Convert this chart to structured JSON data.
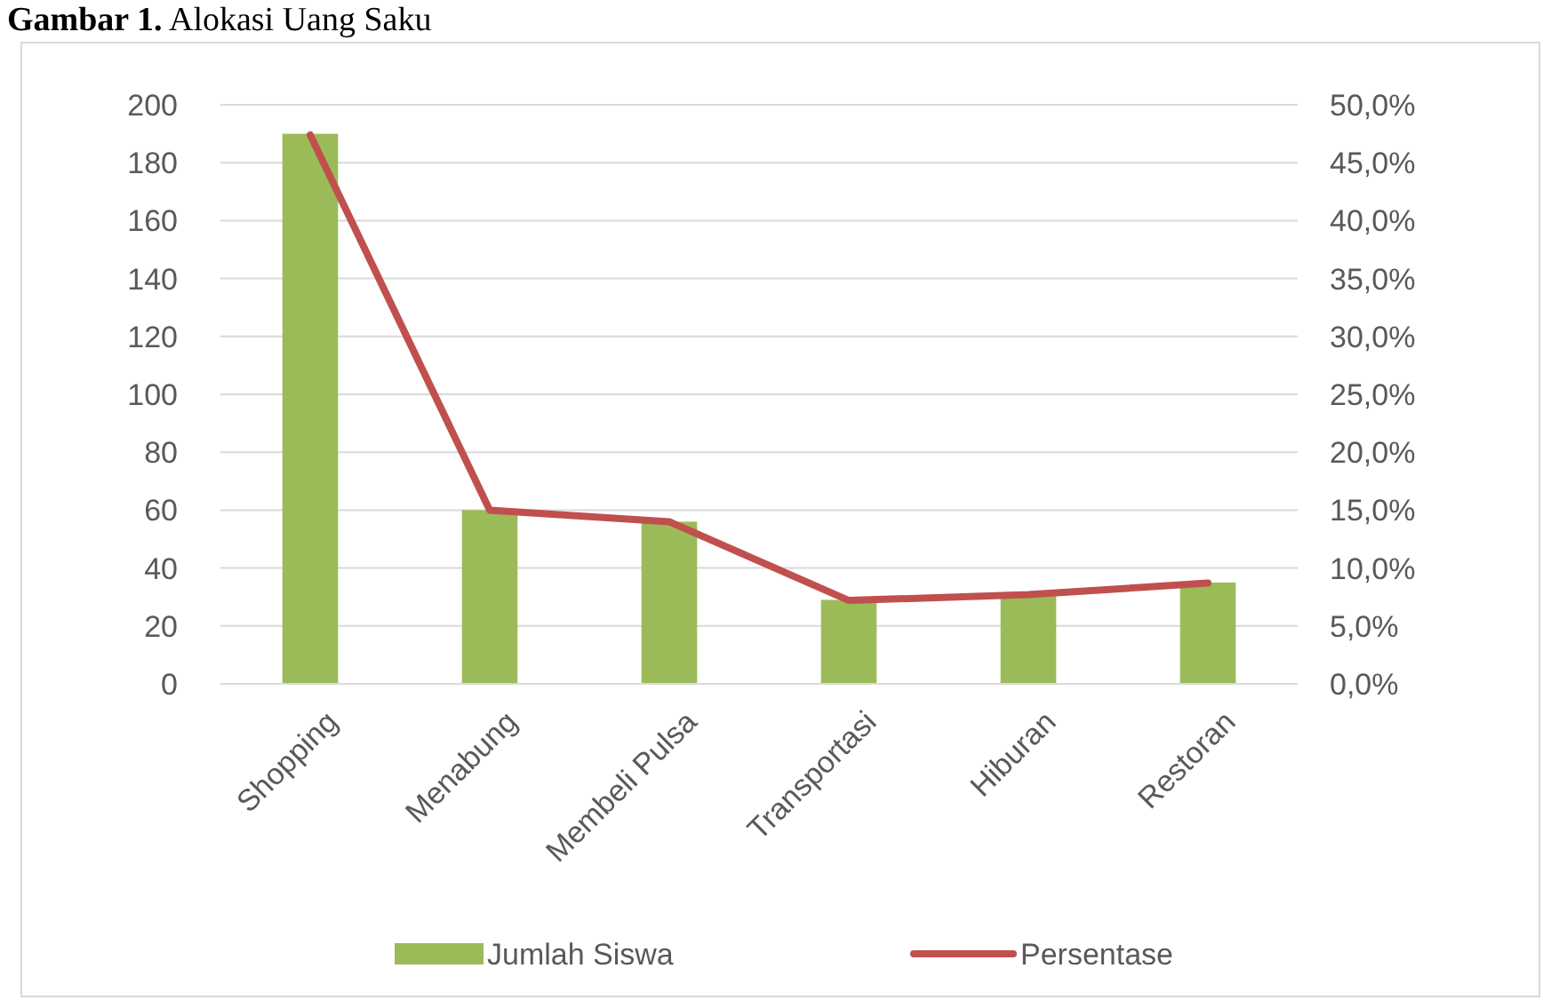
{
  "chart_data": {
    "type": "bar",
    "title": "Gambar 1. Alokasi Uang Saku",
    "categories": [
      "Shopping",
      "Menabung",
      "Membeli Pulsa",
      "Transportasi",
      "Hiburan",
      "Restoran"
    ],
    "series": [
      {
        "name": "Jumlah Siswa",
        "color": "#9bbb59",
        "values": [
          190,
          60,
          56,
          29,
          31,
          35
        ]
      },
      {
        "name": "Persentase",
        "type": "line",
        "axis": "y2",
        "color": "#c0504d",
        "values": [
          47.4,
          15.0,
          14.0,
          7.2,
          7.7,
          8.7
        ]
      }
    ],
    "ylim": [
      0,
      200
    ],
    "yticks": [
      0,
      20,
      40,
      60,
      80,
      100,
      120,
      140,
      160,
      180,
      200
    ],
    "y2lim": [
      0,
      50
    ],
    "y2ticks": [
      {
        "value": 0,
        "label": "0,0%"
      },
      {
        "value": 5,
        "label": "5,0%"
      },
      {
        "value": 10,
        "label": "10,0%"
      },
      {
        "value": 15,
        "label": "15,0%"
      },
      {
        "value": 20,
        "label": "20,0%"
      },
      {
        "value": 25,
        "label": "25,0%"
      },
      {
        "value": 30,
        "label": "30,0%"
      },
      {
        "value": 35,
        "label": "35,0%"
      },
      {
        "value": 40,
        "label": "40,0%"
      },
      {
        "value": 45,
        "label": "45,0%"
      },
      {
        "value": 50,
        "label": "50,0%"
      }
    ],
    "grid": "y",
    "legend": "bottom",
    "marker": "none",
    "line_style": "solid"
  }
}
